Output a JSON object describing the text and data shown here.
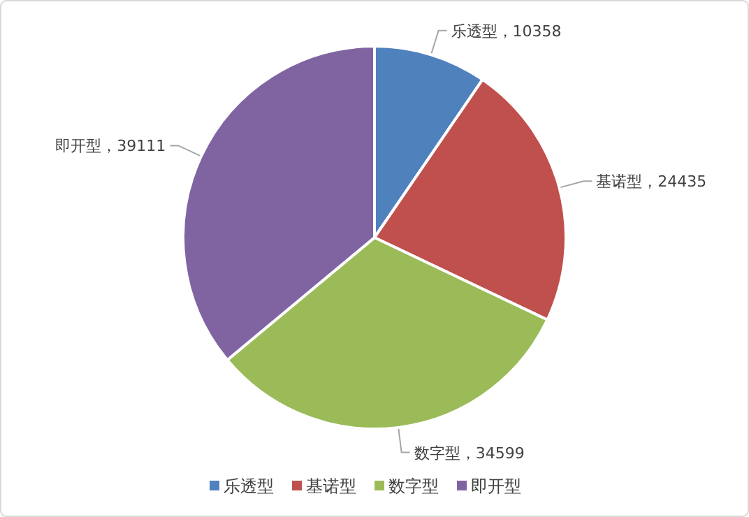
{
  "chart_data": {
    "type": "pie",
    "categories": [
      "乐透型",
      "基诺型",
      "数字型",
      "即开型"
    ],
    "values": [
      10358,
      24435,
      34599,
      39111
    ],
    "value_labels": [
      "乐透型，10358",
      "基诺型，24435",
      "数字型，34599",
      "即开型，39111"
    ],
    "colors": [
      "#4f81bd",
      "#c0504d",
      "#9bbb59",
      "#8064a2"
    ],
    "legend": "bottom"
  }
}
